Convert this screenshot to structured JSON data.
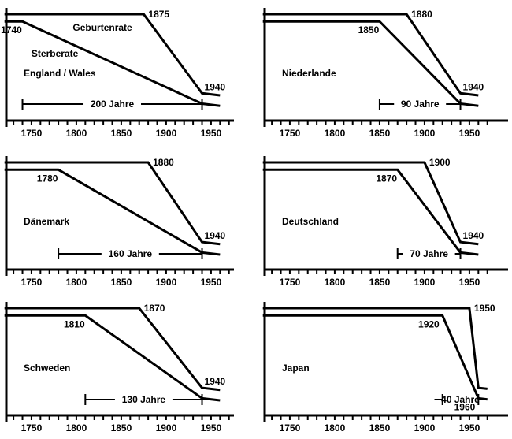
{
  "chart_data": [
    {
      "type": "line",
      "title": "England / Wales",
      "x_ticks": [
        1750,
        1800,
        1850,
        1900,
        1950
      ],
      "xlim": [
        1720,
        1970
      ],
      "series": [
        {
          "name": "Geburtenrate",
          "points": [
            [
              1720,
              1.0
            ],
            [
              1875,
              1.0
            ],
            [
              1940,
              0.24
            ],
            [
              1960,
              0.22
            ]
          ]
        },
        {
          "name": "Sterberate",
          "points": [
            [
              1720,
              0.93
            ],
            [
              1740,
              0.93
            ],
            [
              1940,
              0.14
            ],
            [
              1960,
              0.12
            ]
          ]
        }
      ],
      "annotations": [
        {
          "text": "1740",
          "x": 1740,
          "y": 0.93,
          "pos": "below"
        },
        {
          "text": "1875",
          "x": 1875,
          "y": 1.0,
          "pos": "right"
        },
        {
          "text": "1940",
          "x": 1940,
          "y": 0.24,
          "pos": "above"
        },
        {
          "text": "Geburtenrate",
          "x": 1796,
          "y": 0.87
        },
        {
          "text": "Sterberate",
          "x": 1750,
          "y": 0.62
        }
      ],
      "span": {
        "label": "200 Jahre",
        "from": 1740,
        "to": 1940
      }
    },
    {
      "type": "line",
      "title": "Niederlande",
      "x_ticks": [
        1750,
        1800,
        1850,
        1900,
        1950
      ],
      "xlim": [
        1720,
        1970
      ],
      "series": [
        {
          "name": "",
          "points": [
            [
              1720,
              1.0
            ],
            [
              1880,
              1.0
            ],
            [
              1940,
              0.24
            ],
            [
              1960,
              0.22
            ]
          ]
        },
        {
          "name": "",
          "points": [
            [
              1720,
              0.93
            ],
            [
              1850,
              0.93
            ],
            [
              1940,
              0.14
            ],
            [
              1960,
              0.12
            ]
          ]
        }
      ],
      "annotations": [
        {
          "text": "1850",
          "x": 1850,
          "y": 0.93,
          "pos": "below"
        },
        {
          "text": "1880",
          "x": 1880,
          "y": 1.0,
          "pos": "right"
        },
        {
          "text": "1940",
          "x": 1940,
          "y": 0.24,
          "pos": "above"
        }
      ],
      "span": {
        "label": "90 Jahre",
        "from": 1850,
        "to": 1940
      }
    },
    {
      "type": "line",
      "title": "Dänemark",
      "x_ticks": [
        1750,
        1800,
        1850,
        1900,
        1950
      ],
      "xlim": [
        1720,
        1970
      ],
      "series": [
        {
          "name": "",
          "points": [
            [
              1720,
              1.0
            ],
            [
              1880,
              1.0
            ],
            [
              1940,
              0.24
            ],
            [
              1960,
              0.22
            ]
          ]
        },
        {
          "name": "",
          "points": [
            [
              1720,
              0.93
            ],
            [
              1780,
              0.93
            ],
            [
              1940,
              0.14
            ],
            [
              1960,
              0.12
            ]
          ]
        }
      ],
      "annotations": [
        {
          "text": "1780",
          "x": 1780,
          "y": 0.93,
          "pos": "below"
        },
        {
          "text": "1880",
          "x": 1880,
          "y": 1.0,
          "pos": "right"
        },
        {
          "text": "1940",
          "x": 1940,
          "y": 0.24,
          "pos": "above"
        }
      ],
      "span": {
        "label": "160 Jahre",
        "from": 1780,
        "to": 1940
      }
    },
    {
      "type": "line",
      "title": "Deutschland",
      "x_ticks": [
        1750,
        1800,
        1850,
        1900,
        1950
      ],
      "xlim": [
        1720,
        1970
      ],
      "series": [
        {
          "name": "",
          "points": [
            [
              1720,
              1.0
            ],
            [
              1900,
              1.0
            ],
            [
              1940,
              0.24
            ],
            [
              1960,
              0.22
            ]
          ]
        },
        {
          "name": "",
          "points": [
            [
              1720,
              0.93
            ],
            [
              1870,
              0.93
            ],
            [
              1940,
              0.14
            ],
            [
              1960,
              0.12
            ]
          ]
        }
      ],
      "annotations": [
        {
          "text": "1870",
          "x": 1870,
          "y": 0.93,
          "pos": "below"
        },
        {
          "text": "1900",
          "x": 1900,
          "y": 1.0,
          "pos": "right"
        },
        {
          "text": "1940",
          "x": 1940,
          "y": 0.24,
          "pos": "above"
        }
      ],
      "span": {
        "label": "70 Jahre",
        "from": 1870,
        "to": 1940
      }
    },
    {
      "type": "line",
      "title": "Schweden",
      "x_ticks": [
        1750,
        1800,
        1850,
        1900,
        1950
      ],
      "xlim": [
        1720,
        1970
      ],
      "series": [
        {
          "name": "",
          "points": [
            [
              1720,
              1.0
            ],
            [
              1870,
              1.0
            ],
            [
              1940,
              0.24
            ],
            [
              1960,
              0.22
            ]
          ]
        },
        {
          "name": "",
          "points": [
            [
              1720,
              0.93
            ],
            [
              1810,
              0.93
            ],
            [
              1940,
              0.14
            ],
            [
              1960,
              0.12
            ]
          ]
        }
      ],
      "annotations": [
        {
          "text": "1810",
          "x": 1810,
          "y": 0.93,
          "pos": "below"
        },
        {
          "text": "1870",
          "x": 1870,
          "y": 1.0,
          "pos": "right"
        },
        {
          "text": "1940",
          "x": 1940,
          "y": 0.24,
          "pos": "above"
        }
      ],
      "span": {
        "label": "130 Jahre",
        "from": 1810,
        "to": 1940
      }
    },
    {
      "type": "line",
      "title": "Japan",
      "x_ticks": [
        1750,
        1800,
        1850,
        1900,
        1950
      ],
      "xlim": [
        1720,
        1970
      ],
      "series": [
        {
          "name": "",
          "points": [
            [
              1720,
              1.0
            ],
            [
              1950,
              1.0
            ],
            [
              1960,
              0.24
            ],
            [
              1970,
              0.23
            ]
          ]
        },
        {
          "name": "",
          "points": [
            [
              1720,
              0.93
            ],
            [
              1920,
              0.93
            ],
            [
              1960,
              0.14
            ],
            [
              1970,
              0.13
            ]
          ]
        }
      ],
      "annotations": [
        {
          "text": "1920",
          "x": 1920,
          "y": 0.93,
          "pos": "below-left"
        },
        {
          "text": "1950",
          "x": 1950,
          "y": 1.0,
          "pos": "right"
        },
        {
          "text": "1960",
          "x": 1960,
          "y": 0.14,
          "pos": "below-left"
        }
      ],
      "span": {
        "label": "40 Jahre",
        "from": 1920,
        "to": 1960
      }
    }
  ]
}
